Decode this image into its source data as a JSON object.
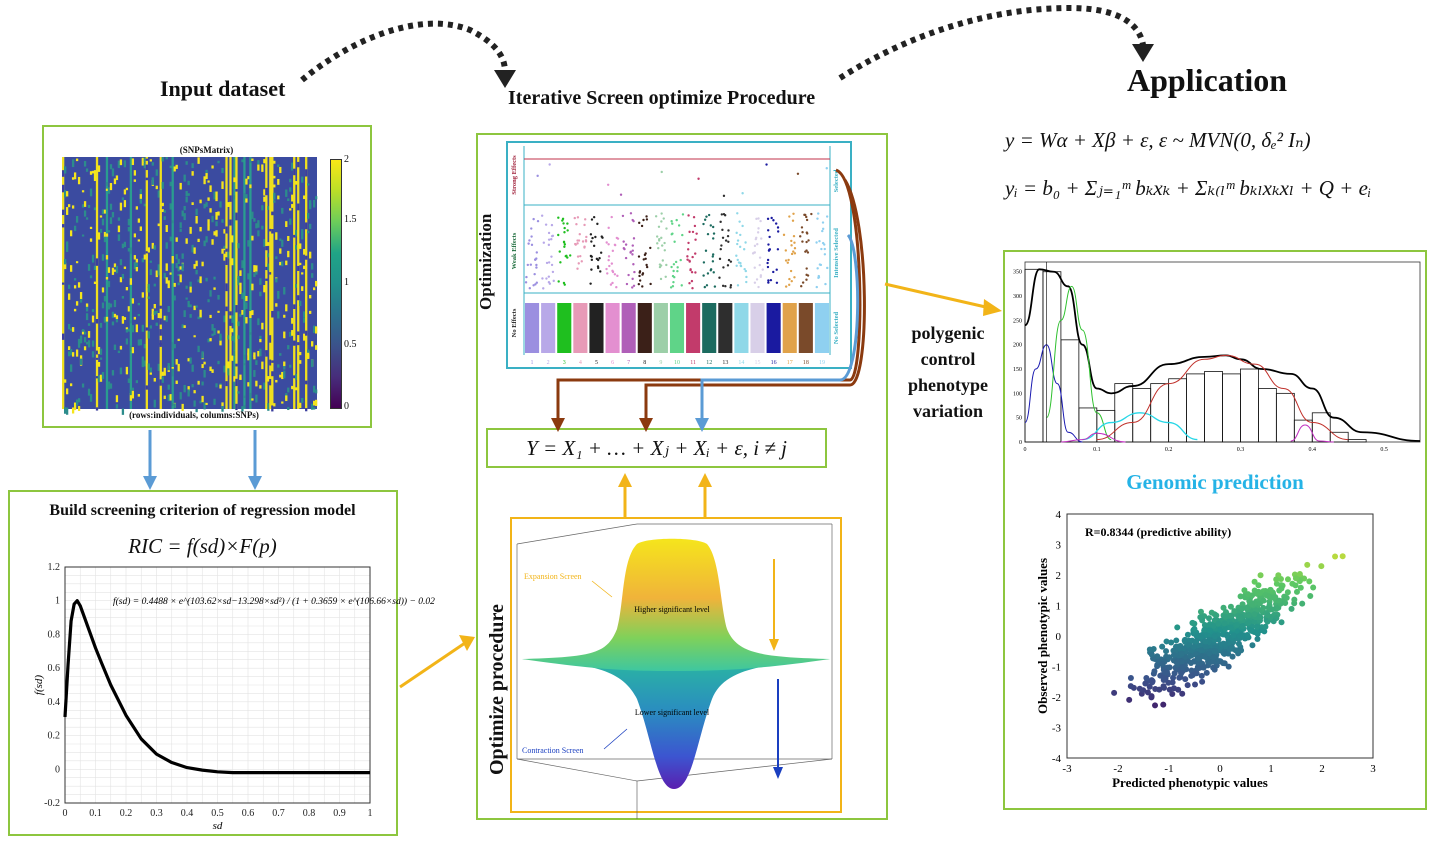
{
  "headings": {
    "input": "Input dataset",
    "procedure": "Iterative Screen optimize Procedure",
    "application": "Application",
    "build": "Build screening criterion of regression model",
    "genomic": "Genomic prediction",
    "polygenic": [
      "polygenic",
      "control",
      "phenotype",
      "variation"
    ]
  },
  "snp": {
    "title": "(SNPsMatrix)",
    "xlabel": "(rows:individuals, columns:SNPs)",
    "colorbar_ticks": [
      "2",
      "1.5",
      "1",
      "0.5",
      "0"
    ]
  },
  "equations": {
    "ric": "RIC = f(sd)×F(p)",
    "fsd": "f(sd) = 0.4488 × e^(103.62×sd−13.298×sd²) / (1 + 0.3659 × e^(106.66×sd)) − 0.02",
    "model": "Y = X₁ + … + Xⱼ + Xᵢ + ε, i ≠ j",
    "app1": "y = Wα + Xβ + ε, ε ~ MVN(0, δₑ² Iₙ)",
    "app2": "yᵢ = b₀ + Σⱼ₌₁ᵐ bₖxₖ + Σₖ₍ₗᵐ bₖₗxₖxₗ + Q + eᵢ"
  },
  "optimization": {
    "side_label": "Optimization",
    "row_labels": [
      "Strong Effects",
      "Weak Effects",
      "No Effects"
    ],
    "right_labels": [
      "Selected",
      "Intensive Selected",
      "No Selected"
    ],
    "column_labels": [
      "1",
      "2",
      "3",
      "4",
      "5",
      "6",
      "7",
      "8",
      "9",
      "10",
      "11",
      "12",
      "13",
      "14",
      "15",
      "16",
      "17",
      "18",
      "19"
    ],
    "column_colors": [
      "#9b8fe0",
      "#b8a8e8",
      "#1fbf1f",
      "#e79ab7",
      "#222222",
      "#e38fd0",
      "#b05fb8",
      "#3b2018",
      "#9ccfa8",
      "#5fd488",
      "#c23b6b",
      "#1c6b5f",
      "#2e2e2e",
      "#8fd8e8",
      "#d8cfe8",
      "#1a1aa0",
      "#e0a24a",
      "#7a4a2a",
      "#8fd0f0"
    ]
  },
  "surface": {
    "side_label": "Optimize procedure",
    "expansion": "Expansion Screen",
    "contraction": "Contraction Screen",
    "higher": "Higher significant level",
    "lower": "Lower significant level"
  },
  "chart_data": [
    {
      "type": "line",
      "title": "",
      "xlabel": "sd",
      "ylabel": "f(sd)",
      "xlim": [
        0,
        1
      ],
      "ylim": [
        -0.2,
        1.2
      ],
      "x_ticks": [
        "0",
        "0.1",
        "0.2",
        "0.3",
        "0.4",
        "0.5",
        "0.6",
        "0.7",
        "0.8",
        "0.9",
        "1"
      ],
      "y_ticks": [
        "1.2",
        "1",
        "0.8",
        "0.6",
        "0.4",
        "0.2",
        "0",
        "-0.2"
      ],
      "grid": true,
      "series": [
        {
          "x": [
            0,
            0.01,
            0.02,
            0.03,
            0.04,
            0.05,
            0.06,
            0.08,
            0.1,
            0.12,
            0.15,
            0.2,
            0.25,
            0.3,
            0.35,
            0.4,
            0.45,
            0.5,
            0.55,
            0.6,
            0.7,
            0.8,
            0.9,
            1.0
          ],
          "y": [
            0.31,
            0.62,
            0.88,
            0.98,
            1.0,
            0.97,
            0.92,
            0.82,
            0.72,
            0.63,
            0.5,
            0.32,
            0.18,
            0.09,
            0.04,
            0.01,
            -0.005,
            -0.015,
            -0.02,
            -0.02,
            -0.02,
            -0.02,
            -0.02,
            -0.02
          ]
        }
      ]
    },
    {
      "type": "bar",
      "title": "",
      "xlim": [
        0,
        0.55
      ],
      "ylim": [
        0,
        370
      ],
      "x_ticks": [
        "0",
        "0.1",
        "0.2",
        "0.3",
        "0.4",
        "0.5"
      ],
      "y_ticks": [
        "350",
        "300",
        "250",
        "200",
        "150",
        "100",
        "50",
        "0"
      ],
      "bins": [
        [
          0,
          0.025
        ],
        [
          0.025,
          0.05
        ],
        [
          0.05,
          0.075
        ],
        [
          0.075,
          0.1
        ],
        [
          0.1,
          0.125
        ],
        [
          0.125,
          0.15
        ],
        [
          0.15,
          0.175
        ],
        [
          0.175,
          0.2
        ],
        [
          0.2,
          0.225
        ],
        [
          0.225,
          0.25
        ],
        [
          0.25,
          0.275
        ],
        [
          0.275,
          0.3
        ],
        [
          0.3,
          0.325
        ],
        [
          0.325,
          0.35
        ],
        [
          0.35,
          0.375
        ],
        [
          0.375,
          0.4
        ],
        [
          0.4,
          0.425
        ],
        [
          0.425,
          0.45
        ],
        [
          0.45,
          0.475
        ]
      ],
      "values": [
        355,
        350,
        210,
        70,
        65,
        120,
        110,
        120,
        130,
        140,
        145,
        140,
        150,
        110,
        100,
        45,
        60,
        20,
        5
      ],
      "curves": {
        "total": {
          "x": [
            0,
            0.02,
            0.04,
            0.06,
            0.08,
            0.1,
            0.12,
            0.15,
            0.2,
            0.25,
            0.28,
            0.3,
            0.33,
            0.37,
            0.4,
            0.43,
            0.47,
            0.55
          ],
          "y": [
            240,
            355,
            350,
            320,
            200,
            110,
            100,
            115,
            160,
            175,
            178,
            170,
            150,
            140,
            110,
            50,
            20,
            2
          ]
        },
        "c1": {
          "x": [
            0,
            0.015,
            0.03,
            0.045,
            0.06,
            0.08
          ],
          "y": [
            40,
            150,
            200,
            120,
            20,
            0
          ]
        },
        "c2": {
          "x": [
            0.03,
            0.05,
            0.065,
            0.08,
            0.1,
            0.12
          ],
          "y": [
            50,
            250,
            320,
            230,
            60,
            5
          ]
        },
        "c3": {
          "x": [
            0.08,
            0.12,
            0.16,
            0.2,
            0.24
          ],
          "y": [
            5,
            40,
            60,
            40,
            5
          ]
        },
        "c4": {
          "x": [
            0.1,
            0.15,
            0.2,
            0.25,
            0.28,
            0.32,
            0.36,
            0.4,
            0.45
          ],
          "y": [
            5,
            40,
            120,
            170,
            178,
            160,
            110,
            40,
            5
          ]
        },
        "c5": {
          "x": [
            0.37,
            0.39,
            0.41,
            0.43
          ],
          "y": [
            2,
            35,
            2,
            0
          ]
        },
        "c6": {
          "x": [
            0.05,
            0.08,
            0.1,
            0.14
          ],
          "y": [
            0,
            5,
            18,
            0
          ]
        }
      }
    },
    {
      "type": "scatter",
      "title": "",
      "annotation": "R=0.8344 (predictive ability)",
      "xlabel": "Predicted phenotypic values",
      "ylabel": "Observed phenotypic values",
      "xlim": [
        -3,
        3
      ],
      "ylim": [
        -4,
        4
      ],
      "x_ticks": [
        "-3",
        "-2",
        "-1",
        "0",
        "1",
        "2",
        "3"
      ],
      "y_ticks": [
        "4",
        "3",
        "2",
        "1",
        "0",
        "-1",
        "-2",
        "-3",
        "-4"
      ],
      "correlation": 0.8344
    }
  ],
  "colors": {
    "panel_border": "#8dc63f",
    "arrow_orange": "#f2b418",
    "arrow_blue": "#5b9bd5",
    "arrow_brown": "#8b3a0f",
    "genomic_title": "#25b3e6",
    "opt_border": "#3ab0c4",
    "surface_border": "#f2b418"
  }
}
